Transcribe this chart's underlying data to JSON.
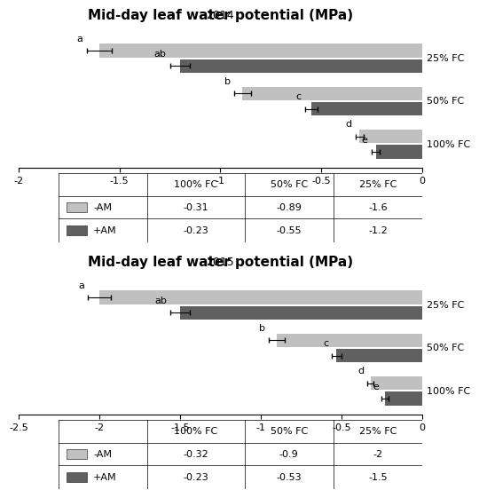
{
  "title": "Mid-day leaf water potential (MPa)",
  "charts": [
    {
      "year": "2014",
      "xlim": [
        -2,
        0
      ],
      "xticks": [
        -2,
        -1.5,
        -1,
        -0.5,
        0
      ],
      "bars": [
        {
          "label": "25% FC",
          "minus_am": -1.6,
          "plus_am": -1.2,
          "letter_minus": "a",
          "letter_plus": "ab",
          "err_minus": 0.06,
          "err_plus": 0.05
        },
        {
          "label": "50% FC",
          "minus_am": -0.89,
          "plus_am": -0.55,
          "letter_minus": "b",
          "letter_plus": "c",
          "err_minus": 0.04,
          "err_plus": 0.03
        },
        {
          "label": "100% FC",
          "minus_am": -0.31,
          "plus_am": -0.23,
          "letter_minus": "d",
          "letter_plus": "e",
          "err_minus": 0.02,
          "err_plus": 0.02
        }
      ],
      "table": {
        "col_labels": [
          "100% FC",
          "50% FC",
          "25% FC"
        ],
        "rows": [
          {
            "name": "-AM",
            "color": "#c0c0c0",
            "values": [
              "-0.31",
              "-0.89",
              "-1.6"
            ]
          },
          {
            "name": "+AM",
            "color": "#606060",
            "values": [
              "-0.23",
              "-0.55",
              "-1.2"
            ]
          }
        ]
      }
    },
    {
      "year": "2015",
      "xlim": [
        -2.5,
        0
      ],
      "xticks": [
        -2.5,
        -2,
        -1.5,
        -1,
        -0.5,
        0
      ],
      "bars": [
        {
          "label": "25% FC",
          "minus_am": -2.0,
          "plus_am": -1.5,
          "letter_minus": "a",
          "letter_plus": "ab",
          "err_minus": 0.07,
          "err_plus": 0.06
        },
        {
          "label": "50% FC",
          "minus_am": -0.9,
          "plus_am": -0.53,
          "letter_minus": "b",
          "letter_plus": "c",
          "err_minus": 0.05,
          "err_plus": 0.03
        },
        {
          "label": "100% FC",
          "minus_am": -0.32,
          "plus_am": -0.23,
          "letter_minus": "d",
          "letter_plus": "e",
          "err_minus": 0.02,
          "err_plus": 0.02
        }
      ],
      "table": {
        "col_labels": [
          "100% FC",
          "50% FC",
          "25% FC"
        ],
        "rows": [
          {
            "name": "-AM",
            "color": "#c0c0c0",
            "values": [
              "-0.32",
              "-0.9",
              "-2"
            ]
          },
          {
            "name": "+AM",
            "color": "#606060",
            "values": [
              "-0.23",
              "-0.53",
              "-1.5"
            ]
          }
        ]
      }
    }
  ],
  "color_minus_am": "#c0c0c0",
  "color_plus_am": "#606060",
  "bar_height": 0.32,
  "background_color": "#ffffff"
}
